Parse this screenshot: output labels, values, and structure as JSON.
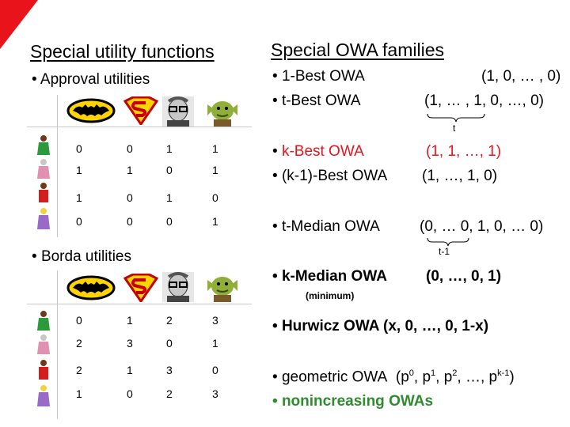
{
  "left": {
    "heading": "Special utility functions",
    "approval": {
      "title": "Approval utilities",
      "rows": [
        [
          "0",
          "0",
          "1",
          "1"
        ],
        [
          "1",
          "1",
          "0",
          "1"
        ],
        [
          "1",
          "0",
          "1",
          "0"
        ],
        [
          "0",
          "0",
          "0",
          "1"
        ]
      ]
    },
    "borda": {
      "title": "Borda utilities",
      "rows": [
        [
          "0",
          "1",
          "2",
          "3"
        ],
        [
          "2",
          "3",
          "0",
          "1"
        ],
        [
          "2",
          "1",
          "3",
          "0"
        ],
        [
          "1",
          "0",
          "2",
          "3"
        ]
      ]
    },
    "column_icons": [
      "batman-icon",
      "superman-icon",
      "person-portrait-icon",
      "ogre-icon"
    ],
    "row_icons": [
      "voter-1-icon",
      "voter-2-icon",
      "voter-3-icon",
      "voter-4-icon"
    ]
  },
  "right": {
    "heading": "Special OWA families",
    "one_best": {
      "label": "1-Best OWA",
      "vector": "(1, 0, … , 0)"
    },
    "t_best": {
      "label": "t-Best OWA",
      "vector": "(1, … , 1, 0, …, 0)",
      "brace": "t"
    },
    "k_best": {
      "label": "k-Best OWA",
      "vector": "(1, 1, …, 1)"
    },
    "k1_best": {
      "label": "(k-1)-Best OWA",
      "vector": "(1, …, 1, 0)"
    },
    "t_median": {
      "label": "t-Median OWA",
      "vector": "(0, … 0, 1, 0, … 0)",
      "brace": "t-1"
    },
    "k_median": {
      "label": "k-Median OWA",
      "vector": "(0, …, 0, 1)",
      "note": "(minimum)"
    },
    "hurwicz": {
      "label": "Hurwicz OWA (x, 0, …, 0, 1-x)"
    },
    "geometric": {
      "label": "geometric OWA",
      "open": "(p",
      "sup0": "0",
      "p1": ", p",
      "sup1": "1",
      "p2": ", p",
      "sup2": "2",
      "rest": ", …, p",
      "supk": "k-1",
      "close": ")"
    },
    "nonincreasing": {
      "label": "nonincreasing OWAs"
    }
  }
}
